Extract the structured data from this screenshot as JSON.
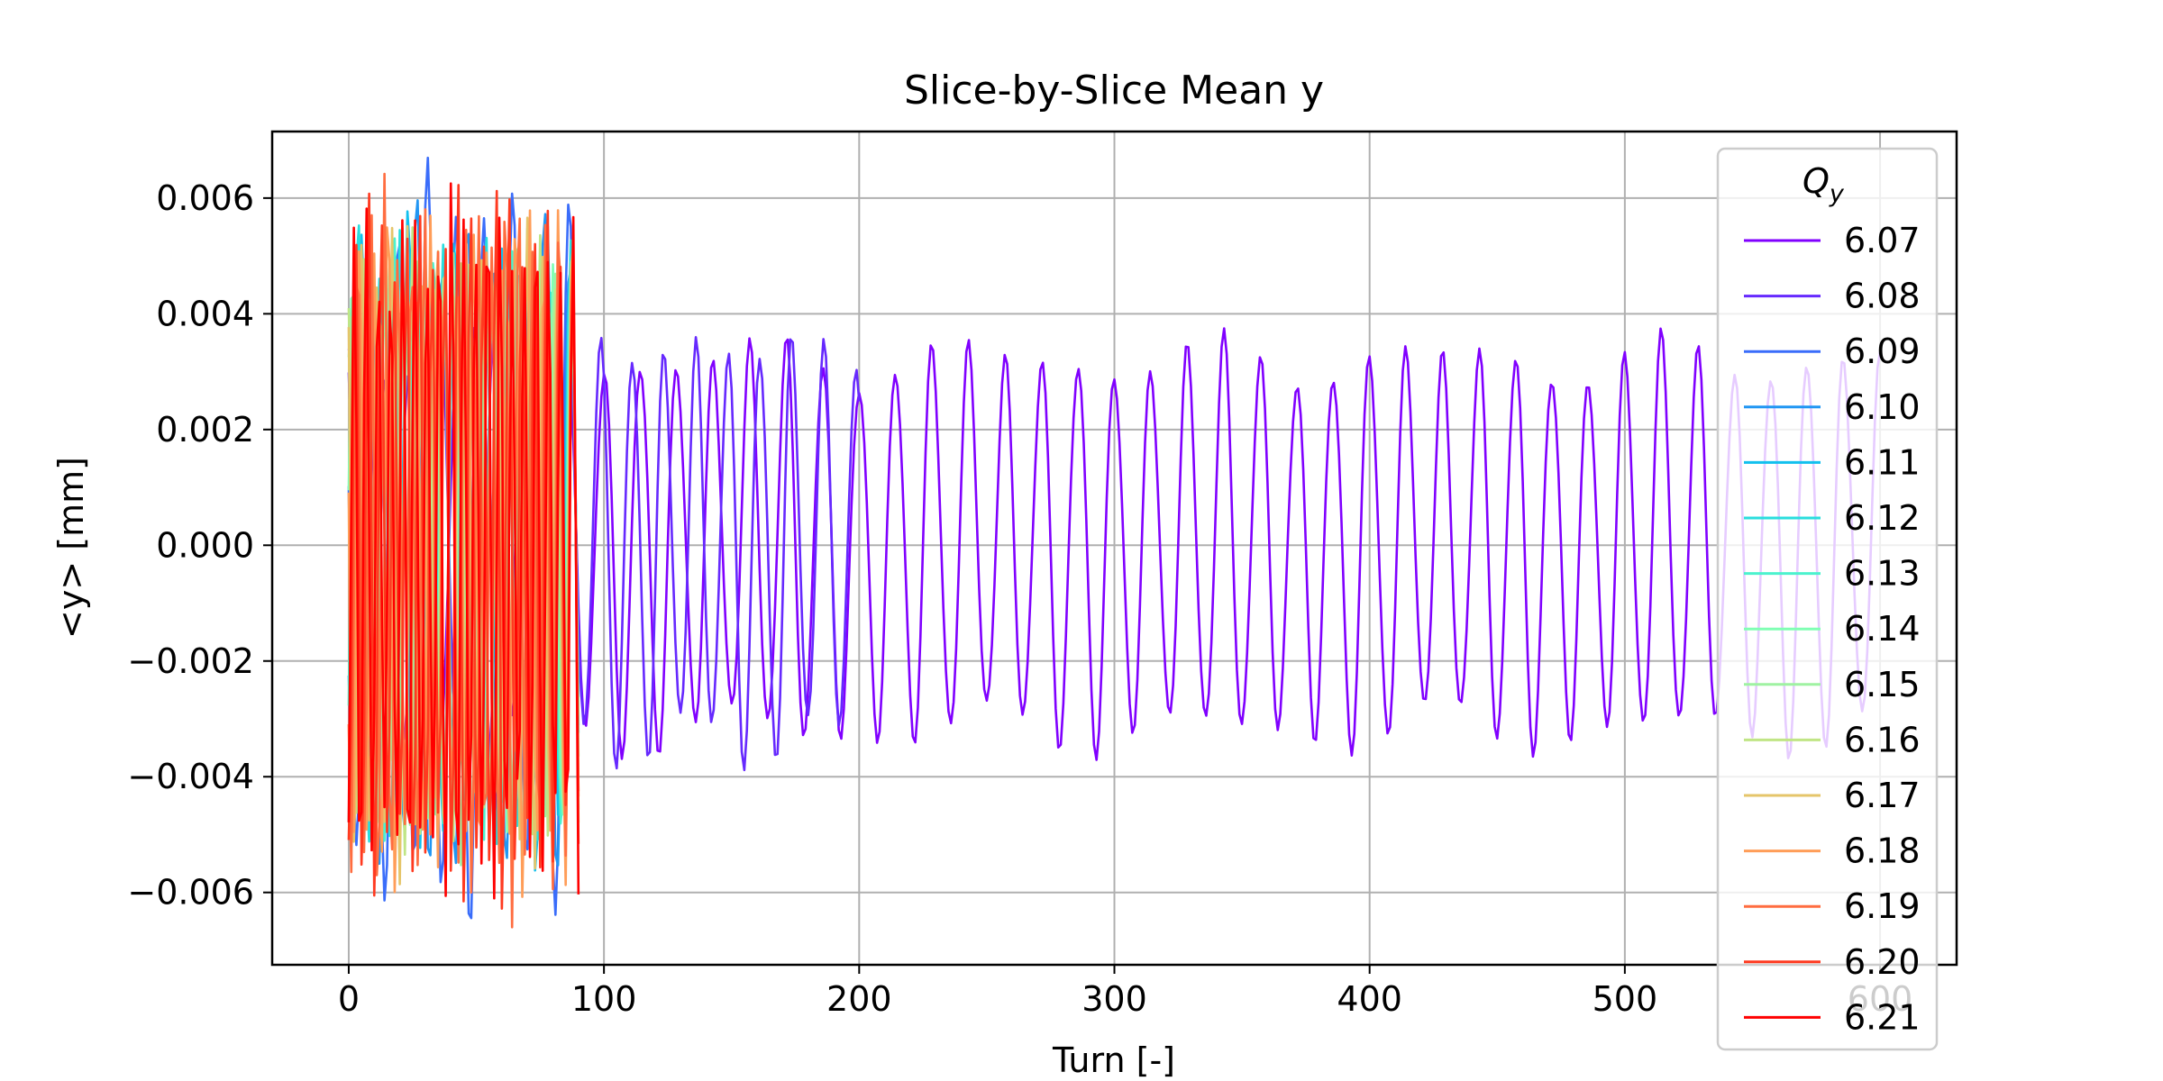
{
  "chart_data": {
    "type": "line",
    "title": "Slice-by-Slice Mean y",
    "xlabel": "Turn [-]",
    "ylabel": "<y> [mm]",
    "xlim": [
      -30,
      630
    ],
    "ylim": [
      -0.00725,
      0.00715
    ],
    "xticks": [
      0,
      100,
      200,
      300,
      400,
      500,
      600
    ],
    "xtick_labels": [
      "0",
      "100",
      "200",
      "300",
      "400",
      "500",
      "600"
    ],
    "yticks": [
      -0.006,
      -0.004,
      -0.002,
      0.0,
      0.002,
      0.004,
      0.006
    ],
    "ytick_labels": [
      "−0.006",
      "−0.004",
      "−0.002",
      "0.000",
      "0.002",
      "0.004",
      "0.006"
    ],
    "grid": true,
    "legend": {
      "title": "Q",
      "title_sub": "y",
      "placement": "upper-right"
    },
    "series": [
      {
        "name": "6.07",
        "color": "#8000ff",
        "turns": [
          0,
          600
        ],
        "amplitude": 0.0032,
        "tune": 6.07
      },
      {
        "name": "6.08",
        "color": "#6629fe",
        "turns": [
          0,
          200
        ],
        "amplitude": 0.0034,
        "tune": 6.08
      },
      {
        "name": "6.09",
        "color": "#3a6dfa",
        "turns": [
          0,
          90
        ],
        "amplitude": 0.0058,
        "tune": 6.09
      },
      {
        "name": "6.10",
        "color": "#2196f3",
        "turns": [
          0,
          90
        ],
        "amplitude": 0.0052,
        "tune": 6.1
      },
      {
        "name": "6.11",
        "color": "#12c0ee",
        "turns": [
          0,
          90
        ],
        "amplitude": 0.005,
        "tune": 6.11
      },
      {
        "name": "6.12",
        "color": "#2adddd",
        "turns": [
          0,
          90
        ],
        "amplitude": 0.0049,
        "tune": 6.12
      },
      {
        "name": "6.13",
        "color": "#4cf2ce",
        "turns": [
          0,
          90
        ],
        "amplitude": 0.0048,
        "tune": 6.13
      },
      {
        "name": "6.14",
        "color": "#80ffb4",
        "turns": [
          0,
          90
        ],
        "amplitude": 0.0047,
        "tune": 6.14
      },
      {
        "name": "6.15",
        "color": "#9ff2a2",
        "turns": [
          0,
          90
        ],
        "amplitude": 0.0047,
        "tune": 6.15
      },
      {
        "name": "6.16",
        "color": "#c0e585",
        "turns": [
          0,
          90
        ],
        "amplitude": 0.0048,
        "tune": 6.16
      },
      {
        "name": "6.17",
        "color": "#e5c56a",
        "turns": [
          0,
          90
        ],
        "amplitude": 0.005,
        "tune": 6.17
      },
      {
        "name": "6.18",
        "color": "#ff9d58",
        "turns": [
          0,
          90
        ],
        "amplitude": 0.0053,
        "tune": 6.18
      },
      {
        "name": "6.19",
        "color": "#ff6d40",
        "turns": [
          0,
          90
        ],
        "amplitude": 0.0056,
        "tune": 6.19
      },
      {
        "name": "6.20",
        "color": "#ff3a20",
        "turns": [
          0,
          90
        ],
        "amplitude": 0.0057,
        "tune": 6.2
      },
      {
        "name": "6.21",
        "color": "#ff0000",
        "turns": [
          0,
          90
        ],
        "amplitude": 0.0055,
        "tune": 6.21
      }
    ]
  }
}
